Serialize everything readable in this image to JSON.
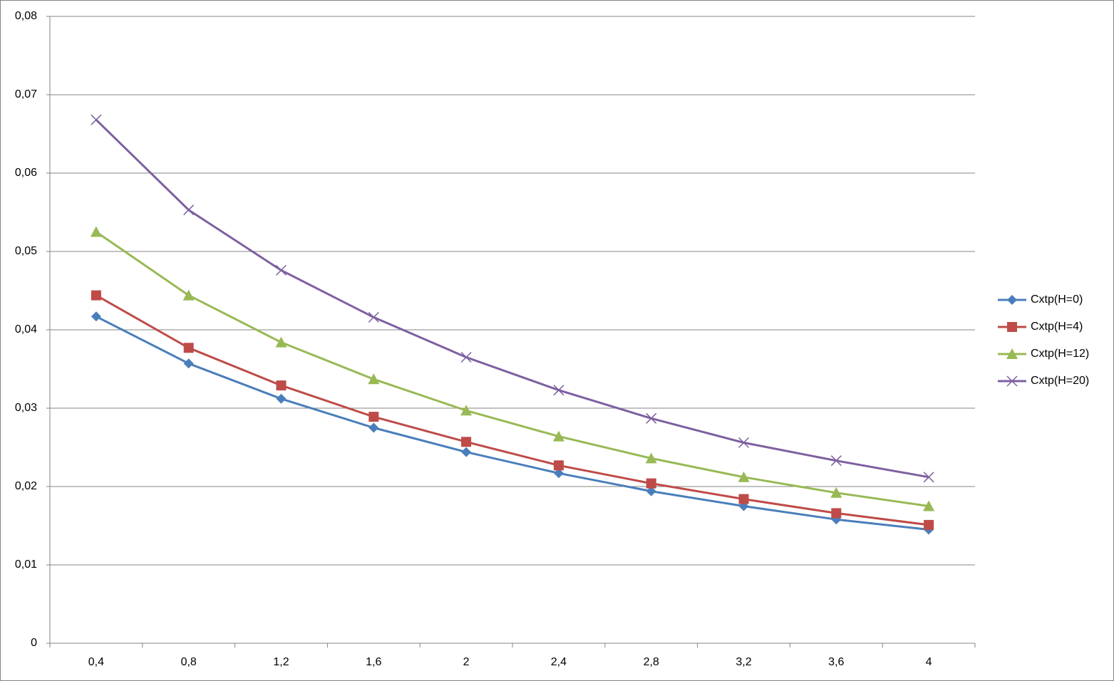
{
  "chart_data": {
    "type": "line",
    "categories": [
      "0,4",
      "0,8",
      "1,2",
      "1,6",
      "2",
      "2,4",
      "2,8",
      "3,2",
      "3,6",
      "4"
    ],
    "series": [
      {
        "name": "Cxtp(H=0)",
        "color": "#4a7ebb",
        "marker": "diamond",
        "values": [
          0.0417,
          0.0357,
          0.0312,
          0.0275,
          0.0244,
          0.0217,
          0.0194,
          0.0175,
          0.0158,
          0.0145
        ]
      },
      {
        "name": "Cxtp(H=4)",
        "color": "#be4b48",
        "marker": "square",
        "values": [
          0.0444,
          0.0377,
          0.0329,
          0.0289,
          0.0257,
          0.0227,
          0.0204,
          0.0184,
          0.0166,
          0.0151
        ]
      },
      {
        "name": "Cxtp(H=12)",
        "color": "#98b954",
        "marker": "triangle",
        "values": [
          0.0525,
          0.0444,
          0.0384,
          0.0337,
          0.0297,
          0.0264,
          0.0236,
          0.0212,
          0.0192,
          0.0175
        ]
      },
      {
        "name": "Cxtp(H=20)",
        "color": "#7d60a0",
        "marker": "x",
        "values": [
          0.0668,
          0.0553,
          0.0476,
          0.0416,
          0.0365,
          0.0323,
          0.0287,
          0.0256,
          0.0233,
          0.0212
        ]
      }
    ],
    "ylim": [
      0,
      0.08
    ],
    "yticks": [
      0,
      {
        "value": 0.01,
        "label": "0,01"
      },
      {
        "value": 0.02,
        "label": "0,02"
      },
      {
        "value": 0.03,
        "label": "0,03"
      },
      {
        "value": 0.04,
        "label": "0,04"
      },
      {
        "value": 0.05,
        "label": "0,05"
      },
      {
        "value": 0.06,
        "label": "0,06"
      },
      {
        "value": 0.07,
        "label": "0,07"
      },
      {
        "value": 0.08,
        "label": "0,08"
      }
    ],
    "grid": true,
    "legend": "right"
  }
}
